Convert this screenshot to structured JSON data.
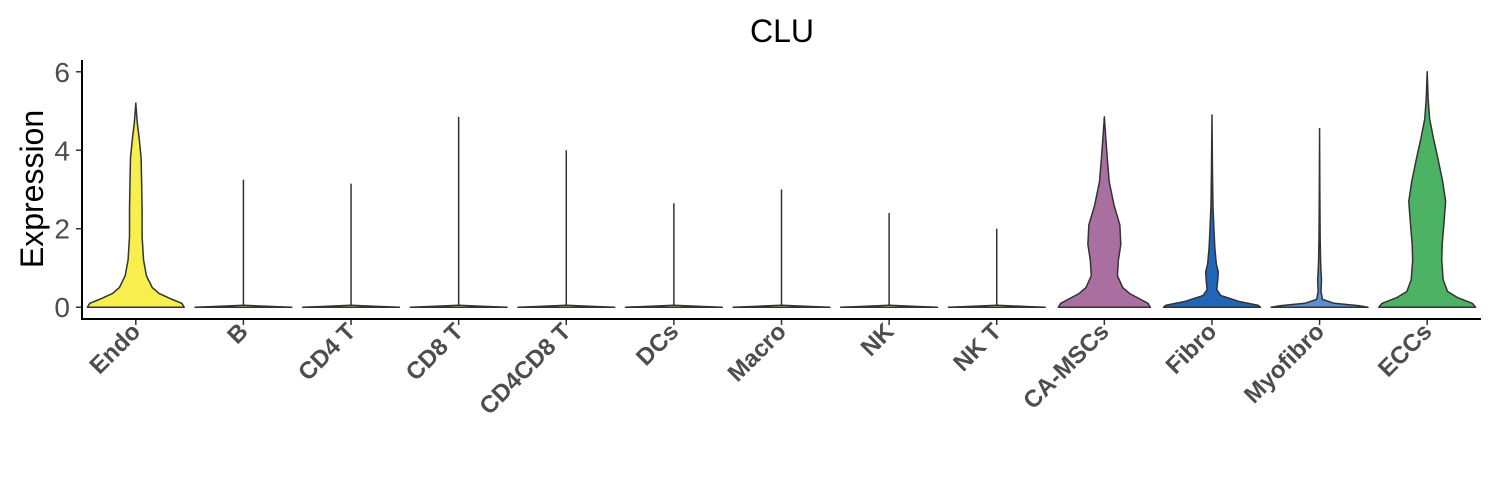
{
  "chart_data": {
    "type": "violin",
    "title": "CLU",
    "xlabel": "",
    "ylabel": "Expression",
    "ylim": [
      -0.3,
      6.3
    ],
    "yticks": [
      0,
      2,
      4,
      6
    ],
    "grid": false,
    "legend": "none",
    "categories": [
      "Endo",
      "B",
      "CD4 T",
      "CD8 T",
      "CD4CD8 T",
      "DCs",
      "Macro",
      "NK",
      "NK T",
      "CA-MSCs",
      "Fibro",
      "Myofibro",
      "ECCs"
    ],
    "series": [
      {
        "category": "Endo",
        "color": "#f7ef4d",
        "max": 5.2,
        "density": [
          [
            0,
            1.0
          ],
          [
            0.1,
            0.95
          ],
          [
            0.2,
            0.75
          ],
          [
            0.35,
            0.48
          ],
          [
            0.5,
            0.34
          ],
          [
            0.8,
            0.22
          ],
          [
            1.2,
            0.16
          ],
          [
            1.8,
            0.13
          ],
          [
            2.5,
            0.13
          ],
          [
            3.2,
            0.12
          ],
          [
            3.8,
            0.11
          ],
          [
            4.3,
            0.07
          ],
          [
            4.7,
            0.03
          ],
          [
            5.2,
            0.0
          ]
        ]
      },
      {
        "category": "B",
        "color": "#f7ef4d",
        "max": 3.25,
        "density": [
          [
            0,
            1.0
          ],
          [
            0.02,
            0.6
          ],
          [
            0.05,
            0.0
          ]
        ]
      },
      {
        "category": "CD4 T",
        "color": "#f7ef4d",
        "max": 3.15,
        "density": [
          [
            0,
            1.0
          ],
          [
            0.02,
            0.6
          ],
          [
            0.05,
            0.0
          ]
        ]
      },
      {
        "category": "CD8 T",
        "color": "#f7ef4d",
        "max": 4.85,
        "density": [
          [
            0,
            1.0
          ],
          [
            0.02,
            0.6
          ],
          [
            0.05,
            0.0
          ]
        ]
      },
      {
        "category": "CD4CD8 T",
        "color": "#f7ef4d",
        "max": 4.0,
        "density": [
          [
            0,
            1.0
          ],
          [
            0.02,
            0.6
          ],
          [
            0.05,
            0.0
          ]
        ]
      },
      {
        "category": "DCs",
        "color": "#f7ef4d",
        "max": 2.65,
        "density": [
          [
            0,
            1.0
          ],
          [
            0.02,
            0.6
          ],
          [
            0.05,
            0.0
          ]
        ]
      },
      {
        "category": "Macro",
        "color": "#f7ef4d",
        "max": 3.0,
        "density": [
          [
            0,
            1.0
          ],
          [
            0.02,
            0.6
          ],
          [
            0.05,
            0.0
          ]
        ]
      },
      {
        "category": "NK",
        "color": "#f7ef4d",
        "max": 2.4,
        "density": [
          [
            0,
            1.0
          ],
          [
            0.02,
            0.6
          ],
          [
            0.05,
            0.0
          ]
        ]
      },
      {
        "category": "NK T",
        "color": "#f7ef4d",
        "max": 2.0,
        "density": [
          [
            0,
            1.0
          ],
          [
            0.02,
            0.6
          ],
          [
            0.05,
            0.0
          ]
        ]
      },
      {
        "category": "CA-MSCs",
        "color": "#a86fa0",
        "max": 4.85,
        "density": [
          [
            0,
            0.95
          ],
          [
            0.1,
            0.9
          ],
          [
            0.2,
            0.75
          ],
          [
            0.35,
            0.52
          ],
          [
            0.5,
            0.38
          ],
          [
            0.8,
            0.27
          ],
          [
            1.2,
            0.29
          ],
          [
            1.6,
            0.34
          ],
          [
            2.1,
            0.32
          ],
          [
            2.6,
            0.2
          ],
          [
            3.2,
            0.1
          ],
          [
            3.8,
            0.06
          ],
          [
            4.3,
            0.03
          ],
          [
            4.85,
            0.0
          ]
        ]
      },
      {
        "category": "Fibro",
        "color": "#1f65b8",
        "max": 4.9,
        "density": [
          [
            0,
            1.0
          ],
          [
            0.05,
            0.95
          ],
          [
            0.15,
            0.55
          ],
          [
            0.3,
            0.18
          ],
          [
            0.45,
            0.1
          ],
          [
            0.7,
            0.12
          ],
          [
            0.9,
            0.13
          ],
          [
            1.1,
            0.09
          ],
          [
            1.5,
            0.06
          ],
          [
            2.0,
            0.04
          ],
          [
            2.6,
            0.02
          ],
          [
            3.5,
            0.01
          ],
          [
            4.9,
            0.0
          ]
        ]
      },
      {
        "category": "Myofibro",
        "color": "#5a8fd0",
        "max": 4.55,
        "density": [
          [
            0,
            1.0
          ],
          [
            0.04,
            0.8
          ],
          [
            0.1,
            0.3
          ],
          [
            0.2,
            0.06
          ],
          [
            0.4,
            0.03
          ],
          [
            0.7,
            0.04
          ],
          [
            0.9,
            0.03
          ],
          [
            1.2,
            0.02
          ],
          [
            1.8,
            0.012
          ],
          [
            2.8,
            0.006
          ],
          [
            4.55,
            0.0
          ]
        ]
      },
      {
        "category": "ECCs",
        "color": "#4cb364",
        "max": 6.0,
        "density": [
          [
            0,
            1.0
          ],
          [
            0.1,
            0.93
          ],
          [
            0.25,
            0.62
          ],
          [
            0.4,
            0.42
          ],
          [
            0.7,
            0.33
          ],
          [
            1.2,
            0.3
          ],
          [
            1.6,
            0.31
          ],
          [
            2.2,
            0.35
          ],
          [
            2.7,
            0.38
          ],
          [
            3.2,
            0.32
          ],
          [
            3.8,
            0.22
          ],
          [
            4.3,
            0.13
          ],
          [
            4.8,
            0.05
          ],
          [
            5.3,
            0.02
          ],
          [
            6.0,
            0.0
          ]
        ]
      }
    ]
  }
}
